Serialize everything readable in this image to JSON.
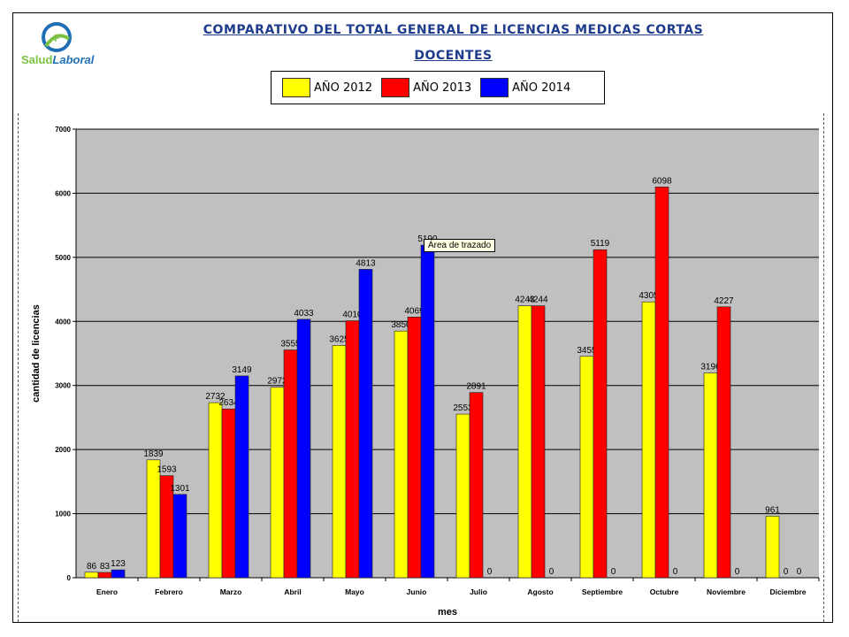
{
  "header": {
    "logo_text_part1": "Salud",
    "logo_text_part2": "Laboral",
    "title_line1": "COMPARATIVO DEL TOTAL GENERAL DE LICENCIAS MEDICAS CORTAS",
    "title_line2": "DOCENTES"
  },
  "legend": [
    {
      "label": "AÑO 2012",
      "color": "#ffff00"
    },
    {
      "label": "AÑO 2013",
      "color": "#ff0000"
    },
    {
      "label": "AÑO 2014",
      "color": "#0000ff"
    }
  ],
  "tooltip": "Área de trazado",
  "chart_data": {
    "type": "bar",
    "xlabel": "mes",
    "ylabel": "cantidad de licencias",
    "ylim": [
      0,
      7000
    ],
    "yticks": [
      0,
      1000,
      2000,
      3000,
      4000,
      5000,
      6000,
      7000
    ],
    "grid": true,
    "plot_bg": "#c0c0c0",
    "categories": [
      "Enero",
      "Febrero",
      "Marzo",
      "Abril",
      "Mayo",
      "Junio",
      "Julio",
      "Agosto",
      "Septiembre",
      "Octubre",
      "Noviembre",
      "Diciembre"
    ],
    "series": [
      {
        "name": "AÑO 2012",
        "color": "#ffff00",
        "values": [
          86,
          1839,
          2732,
          2972,
          3625,
          3850,
          2553,
          4243,
          3455,
          4305,
          3196,
          961
        ],
        "labels": [
          "86",
          "1839",
          "2732",
          "2972",
          "3625",
          "3850",
          "2553",
          "4243",
          "3455",
          "4305",
          "3196",
          "961"
        ]
      },
      {
        "name": "AÑO 2013",
        "color": "#ff0000",
        "values": [
          83,
          1593,
          2634,
          3555,
          4010,
          4069,
          2891,
          4244,
          5119,
          6098,
          4227,
          0
        ],
        "labels": [
          "83",
          "1593",
          "2634",
          "3555",
          "4010",
          "4069",
          "2891",
          "4244",
          "5119",
          "6098",
          "4227",
          "0"
        ]
      },
      {
        "name": "AÑO 2014",
        "color": "#0000ff",
        "values": [
          123,
          1301,
          3149,
          4033,
          4813,
          5190,
          0,
          0,
          0,
          0,
          0,
          0
        ],
        "labels": [
          "123",
          "1301",
          "3149",
          "4033",
          "4813",
          "5190",
          "0",
          "0",
          "0",
          "0",
          "0",
          "0"
        ]
      }
    ]
  }
}
